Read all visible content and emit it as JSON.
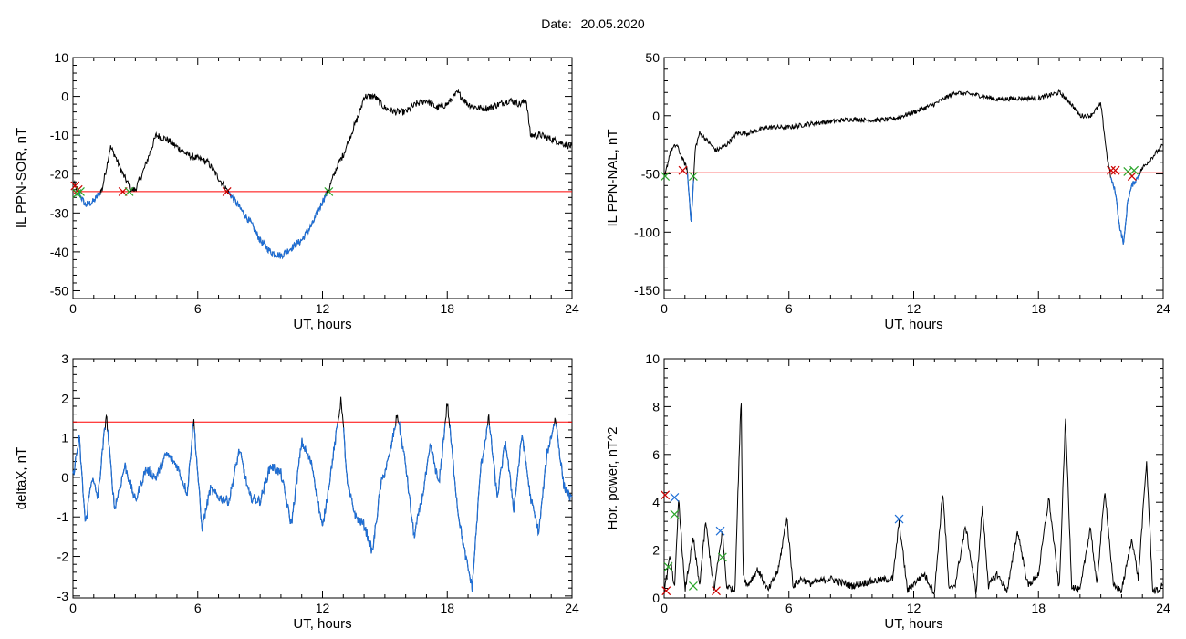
{
  "header": {
    "date_label": "Date:",
    "date_value": "20.05.2020"
  },
  "colors": {
    "axes": "#000000",
    "trace": "#000000",
    "threshold": "#ff0000",
    "below": "#1f6fd6",
    "mark_red": "#cc0000",
    "mark_green": "#2aa52a",
    "mark_blue": "#1f6fd6"
  },
  "chart_data": [
    {
      "id": "sor",
      "type": "line",
      "title": "",
      "xlabel": "UT, hours",
      "ylabel": "IL PPN-SOR, nT",
      "xlim": [
        0,
        24
      ],
      "ylim": [
        -52,
        10
      ],
      "xticks": [
        "0",
        "6",
        "12",
        "18",
        "24"
      ],
      "yticks": [
        "10",
        "0",
        "-10",
        "-20",
        "-30",
        "-40",
        "-50"
      ],
      "threshold": -24.5,
      "noise": 0.9,
      "series": [
        {
          "x": [
            0,
            0.3,
            0.6,
            1.0,
            1.4,
            1.8,
            2.0,
            2.4,
            2.8,
            3.0,
            3.4,
            3.6,
            4.0,
            4.5,
            5.0,
            5.5,
            6.0,
            6.5,
            7.0,
            7.4,
            7.8,
            8.2,
            8.6,
            9.0,
            9.5,
            10.0,
            10.5,
            11.0,
            11.5,
            12.0,
            12.3,
            12.7,
            13.0,
            13.5,
            13.8,
            14.0,
            14.5,
            15.0,
            15.5,
            16.0,
            16.5,
            17.0,
            17.5,
            18.0,
            18.5,
            19.0,
            19.5,
            20.0,
            20.5,
            21.0,
            21.5,
            21.8,
            22.0,
            22.5,
            23.0,
            23.5,
            24.0
          ],
          "y": [
            -22,
            -25,
            -28,
            -27,
            -24,
            -13,
            -15,
            -20,
            -24,
            -24,
            -19,
            -16,
            -10,
            -11,
            -13,
            -15,
            -16,
            -17,
            -21,
            -24,
            -27,
            -30,
            -33,
            -37,
            -40,
            -41,
            -39,
            -37,
            -33,
            -27,
            -24,
            -18,
            -15,
            -8,
            -4,
            0,
            0,
            -3,
            -4,
            -4,
            -2,
            -1,
            -3,
            -2,
            1,
            -2,
            -3,
            -3,
            -2,
            -1,
            -2,
            -1,
            -10,
            -10,
            -11,
            -12,
            -13
          ]
        }
      ],
      "markers": [
        {
          "x": 0.1,
          "y": -23,
          "color": "red"
        },
        {
          "x": 0.25,
          "y": -24,
          "color": "red"
        },
        {
          "x": 0.2,
          "y": -25,
          "color": "green"
        },
        {
          "x": 0.35,
          "y": -24.5,
          "color": "green"
        },
        {
          "x": 2.4,
          "y": -24.5,
          "color": "red"
        },
        {
          "x": 2.7,
          "y": -24.5,
          "color": "green"
        },
        {
          "x": 7.4,
          "y": -24.5,
          "color": "red"
        },
        {
          "x": 12.3,
          "y": -24.5,
          "color": "green"
        }
      ]
    },
    {
      "id": "nal",
      "type": "line",
      "title": "",
      "xlabel": "UT, hours",
      "ylabel": "IL PPN-NAL, nT",
      "xlim": [
        0,
        24
      ],
      "ylim": [
        -157,
        50
      ],
      "xticks": [
        "0",
        "6",
        "12",
        "18",
        "24"
      ],
      "yticks": [
        "50",
        "0",
        "-50",
        "-100",
        "-150"
      ],
      "threshold": -49,
      "noise": 2.0,
      "series": [
        {
          "x": [
            0,
            0.3,
            0.6,
            0.9,
            1.1,
            1.3,
            1.5,
            1.7,
            2.0,
            2.5,
            3.0,
            3.5,
            4.0,
            5.0,
            6.0,
            7.0,
            8.0,
            9.0,
            10.0,
            11.0,
            12.0,
            13.0,
            14.0,
            15.0,
            16.0,
            17.0,
            18.0,
            19.0,
            19.5,
            20.0,
            20.5,
            21.0,
            21.3,
            21.5,
            21.7,
            21.9,
            22.1,
            22.3,
            22.5,
            22.7,
            23.0,
            23.5,
            24.0
          ],
          "y": [
            -55,
            -30,
            -25,
            -38,
            -45,
            -92,
            -28,
            -15,
            -20,
            -30,
            -25,
            -15,
            -15,
            -10,
            -10,
            -7,
            -5,
            -3,
            -4,
            -3,
            3,
            10,
            20,
            18,
            14,
            15,
            15,
            20,
            12,
            0,
            0,
            10,
            -35,
            -55,
            -65,
            -95,
            -110,
            -72,
            -60,
            -55,
            -45,
            -35,
            -25
          ]
        }
      ],
      "markers": [
        {
          "x": 0.05,
          "y": -52,
          "color": "green"
        },
        {
          "x": 0.9,
          "y": -47,
          "color": "red"
        },
        {
          "x": 1.4,
          "y": -52,
          "color": "green"
        },
        {
          "x": 21.5,
          "y": -47,
          "color": "red"
        },
        {
          "x": 21.7,
          "y": -47,
          "color": "red"
        },
        {
          "x": 22.3,
          "y": -48,
          "color": "green"
        },
        {
          "x": 22.5,
          "y": -52,
          "color": "red"
        },
        {
          "x": 22.6,
          "y": -47,
          "color": "green"
        }
      ]
    },
    {
      "id": "deltax",
      "type": "line",
      "title": "",
      "xlabel": "UT, hours",
      "ylabel": "deltaX, nT",
      "xlim": [
        0,
        24
      ],
      "ylim": [
        -3.05,
        3
      ],
      "xticks": [
        "0",
        "6",
        "12",
        "18",
        "24"
      ],
      "yticks": [
        "3",
        "2",
        "1",
        "0",
        "-1",
        "-2",
        "-3"
      ],
      "threshold": 1.4,
      "noise": 0.12,
      "series": [
        {
          "x": [
            0,
            0.3,
            0.6,
            0.9,
            1.2,
            1.6,
            2.0,
            2.5,
            3.0,
            3.5,
            4.0,
            4.5,
            5.0,
            5.5,
            5.8,
            6.2,
            6.6,
            7.0,
            7.5,
            8.0,
            8.5,
            9.0,
            9.5,
            10.0,
            10.5,
            11.0,
            11.5,
            12.0,
            12.5,
            12.9,
            13.2,
            13.6,
            14.0,
            14.4,
            14.8,
            15.2,
            15.6,
            16.0,
            16.4,
            16.8,
            17.2,
            17.6,
            18.0,
            18.5,
            18.8,
            19.2,
            19.6,
            20.0,
            20.4,
            20.8,
            21.2,
            21.6,
            22.0,
            22.4,
            22.8,
            23.2,
            23.6,
            24.0
          ],
          "y": [
            0,
            1.0,
            -1.2,
            0,
            -0.5,
            1.6,
            -0.8,
            0.3,
            -0.6,
            0.2,
            0,
            0.6,
            0.3,
            -0.4,
            1.5,
            -1.3,
            -0.3,
            -0.5,
            -0.6,
            0.7,
            -0.5,
            -0.6,
            0.3,
            0.1,
            -1.2,
            0.9,
            0.3,
            -1.3,
            0.5,
            2.0,
            -0.2,
            -1.0,
            -1.2,
            -1.9,
            -0.2,
            0.5,
            1.6,
            0.3,
            -1.5,
            -0.5,
            0.8,
            -0.2,
            1.9,
            -0.8,
            -1.8,
            -2.8,
            0.2,
            1.5,
            -0.5,
            0.9,
            -0.8,
            1.1,
            -0.5,
            -1.4,
            0.6,
            1.5,
            -0.2,
            -0.6
          ]
        }
      ],
      "markers": []
    },
    {
      "id": "power",
      "type": "line",
      "title": "",
      "xlabel": "UT, hours",
      "ylabel": "Hor. power, nT^2",
      "xlim": [
        0,
        24
      ],
      "ylim": [
        0,
        10
      ],
      "xticks": [
        "0",
        "6",
        "12",
        "18",
        "24"
      ],
      "yticks": [
        "10",
        "8",
        "6",
        "4",
        "2",
        "0"
      ],
      "noise": 0.15,
      "floor": 0,
      "series": [
        {
          "x": [
            0,
            0.3,
            0.5,
            0.7,
            1.0,
            1.4,
            1.7,
            2.0,
            2.4,
            2.8,
            3.0,
            3.4,
            3.7,
            3.8,
            4.0,
            4.5,
            5.0,
            5.5,
            5.9,
            6.2,
            6.6,
            7.0,
            8.0,
            9.0,
            10.0,
            11.0,
            11.3,
            11.7,
            12.0,
            12.5,
            13.0,
            13.4,
            13.7,
            14.0,
            14.5,
            15.0,
            15.3,
            15.6,
            16.0,
            16.5,
            17.0,
            17.5,
            18.0,
            18.5,
            19.0,
            19.3,
            19.6,
            20.0,
            20.5,
            20.8,
            21.2,
            21.6,
            22.0,
            22.5,
            22.8,
            23.2,
            23.5,
            23.8,
            24.0
          ],
          "y": [
            0.3,
            1.8,
            0.3,
            4.2,
            0.3,
            2.5,
            0.5,
            3.2,
            0.3,
            2.8,
            0.5,
            0.3,
            8.5,
            1.0,
            0.5,
            1.2,
            0.3,
            1.2,
            3.4,
            0.5,
            0.8,
            0.6,
            0.8,
            0.5,
            0.7,
            0.8,
            3.2,
            0.3,
            0.6,
            1.0,
            0.2,
            4.5,
            0.3,
            0.6,
            3.0,
            0.2,
            3.8,
            0.5,
            1.0,
            0.3,
            2.8,
            0.5,
            1.0,
            4.2,
            0.3,
            7.5,
            0.5,
            0.3,
            3.0,
            0.5,
            4.5,
            0.5,
            0.3,
            2.5,
            0.8,
            5.7,
            0.3,
            0.3,
            0.6
          ]
        }
      ],
      "markers": [
        {
          "x": 0.1,
          "y": 0.3,
          "color": "red"
        },
        {
          "x": 0.2,
          "y": 1.3,
          "color": "green"
        },
        {
          "x": 0.5,
          "y": 4.2,
          "color": "blue"
        },
        {
          "x": 0.5,
          "y": 3.5,
          "color": "green"
        },
        {
          "x": 1.4,
          "y": 0.5,
          "color": "green"
        },
        {
          "x": 2.5,
          "y": 0.3,
          "color": "red"
        },
        {
          "x": 2.7,
          "y": 2.8,
          "color": "blue"
        },
        {
          "x": 2.8,
          "y": 1.7,
          "color": "green"
        },
        {
          "x": 11.3,
          "y": 3.3,
          "color": "blue"
        },
        {
          "x": 0.05,
          "y": 4.3,
          "color": "red"
        }
      ]
    }
  ]
}
